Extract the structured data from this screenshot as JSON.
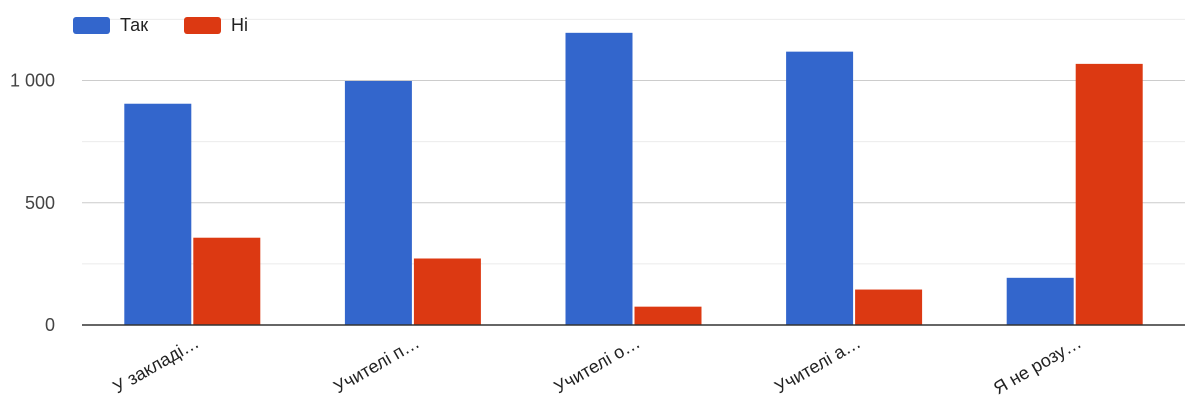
{
  "chart_data": {
    "type": "bar",
    "categories": [
      "У закладі…",
      "Учителі п…",
      "Учителі о…",
      "Учителі а…",
      "Я не розу…"
    ],
    "series": [
      {
        "name": "Так",
        "color": "#3366cc",
        "values": [
          905,
          998,
          1195,
          1118,
          193
        ]
      },
      {
        "name": "Ні",
        "color": "#dc3912",
        "values": [
          357,
          272,
          75,
          145,
          1068
        ]
      }
    ],
    "yticks": [
      0,
      500,
      1000
    ],
    "ytick_labels": [
      "0",
      "500",
      "1 000"
    ],
    "ylim": [
      0,
      1250
    ],
    "grid": true,
    "legend_position": "top-left",
    "xlabel": "",
    "ylabel": "",
    "title": ""
  }
}
